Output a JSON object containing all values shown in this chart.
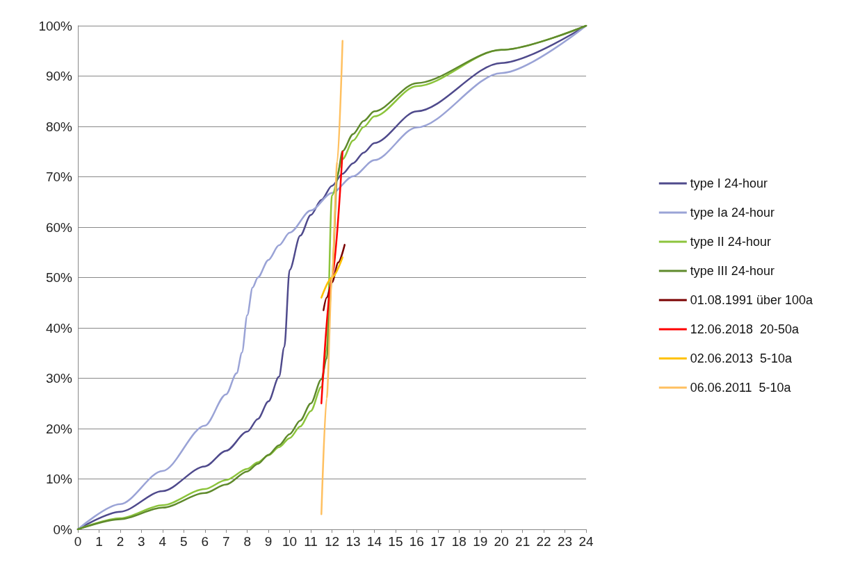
{
  "chart_data": {
    "type": "line",
    "xlim": [
      0,
      24
    ],
    "ylim": [
      0,
      100
    ],
    "xticks": [
      0,
      1,
      2,
      3,
      4,
      5,
      6,
      7,
      8,
      9,
      10,
      11,
      12,
      13,
      14,
      15,
      16,
      17,
      18,
      19,
      20,
      21,
      22,
      23,
      24
    ],
    "yticks": [
      {
        "value": 0,
        "label": "0%"
      },
      {
        "value": 10,
        "label": "10%"
      },
      {
        "value": 20,
        "label": "20%"
      },
      {
        "value": 30,
        "label": "30%"
      },
      {
        "value": 40,
        "label": "40%"
      },
      {
        "value": 50,
        "label": "50%"
      },
      {
        "value": 60,
        "label": "60%"
      },
      {
        "value": 70,
        "label": "70%"
      },
      {
        "value": 80,
        "label": "80%"
      },
      {
        "value": 90,
        "label": "90%"
      },
      {
        "value": 100,
        "label": "100%"
      }
    ],
    "grid": "y",
    "legend": "right",
    "marker": "none",
    "line_style": "solid",
    "series": [
      {
        "name": "type I 24-hour",
        "color": "#4f4a8c",
        "x": [
          0,
          2,
          4,
          6,
          7,
          8,
          8.5,
          9,
          9.5,
          9.75,
          10,
          10.5,
          11,
          11.5,
          12,
          12.5,
          13,
          13.5,
          14,
          16,
          20,
          24
        ],
        "values": [
          0,
          3.5,
          7.6,
          12.5,
          15.6,
          19.4,
          21.9,
          25.4,
          30.3,
          36.2,
          51.5,
          58.3,
          62.4,
          65.4,
          68.2,
          70.6,
          72.7,
          74.8,
          76.7,
          83,
          92.6,
          100
        ]
      },
      {
        "name": "type Ia 24-hour",
        "color": "#9aa3d6",
        "x": [
          0,
          2,
          4,
          6,
          7,
          7.5,
          7.75,
          8,
          8.25,
          8.5,
          9,
          9.5,
          10,
          11,
          12,
          13,
          14,
          16,
          20,
          24
        ],
        "values": [
          0,
          5,
          11.6,
          20.6,
          26.8,
          31,
          35.1,
          42.5,
          48,
          50,
          53.5,
          56.4,
          58.9,
          63.3,
          66.8,
          70.1,
          73.3,
          79.8,
          90.6,
          100
        ]
      },
      {
        "name": "type II 24-hour",
        "color": "#8cc43c",
        "x": [
          0,
          2,
          4,
          6,
          7,
          8,
          8.5,
          9,
          9.5,
          10,
          10.5,
          11,
          11.5,
          11.75,
          12,
          12.5,
          13,
          13.5,
          14,
          16,
          20,
          24
        ],
        "values": [
          0,
          2.2,
          4.8,
          8,
          9.8,
          12,
          13.3,
          14.7,
          16.3,
          18.1,
          20.4,
          23.5,
          28.3,
          35.7,
          66.3,
          73.5,
          77.2,
          79.9,
          82,
          88,
          95.2,
          100
        ]
      },
      {
        "name": "type III 24-hour",
        "color": "#5f8a2c",
        "x": [
          0,
          2,
          4,
          6,
          7,
          8,
          8.5,
          9,
          9.5,
          10,
          10.5,
          11,
          11.5,
          11.75,
          12,
          12.25,
          12.5,
          13,
          13.5,
          14,
          16,
          20,
          24
        ],
        "values": [
          0,
          2,
          4.3,
          7.2,
          8.9,
          11.5,
          13,
          14.8,
          16.7,
          18.9,
          21.6,
          25,
          29.8,
          33.9,
          50,
          70.2,
          75.1,
          78.5,
          81.1,
          83,
          88.6,
          95.2,
          100
        ]
      },
      {
        "name": "01.08.1991 über 100a",
        "color": "#7a0000",
        "x": [
          11.6,
          11.75,
          12,
          12.3,
          12.6
        ],
        "values": [
          43.5,
          46,
          49,
          53,
          56.5
        ]
      },
      {
        "name": "12.06.2018  20-50a",
        "color": "#ff0000",
        "x": [
          11.5,
          12,
          12.5
        ],
        "values": [
          25,
          50,
          75
        ]
      },
      {
        "name": "02.06.2013  5-10a",
        "color": "#ffc000",
        "x": [
          11.5,
          12,
          12.5
        ],
        "values": [
          46,
          50,
          54
        ]
      },
      {
        "name": "06.06.2011  5-10a",
        "color": "#ffc060",
        "x": [
          11.5,
          11.75,
          12,
          12.25,
          12.5
        ],
        "values": [
          3,
          26,
          50,
          73,
          97
        ]
      }
    ]
  }
}
